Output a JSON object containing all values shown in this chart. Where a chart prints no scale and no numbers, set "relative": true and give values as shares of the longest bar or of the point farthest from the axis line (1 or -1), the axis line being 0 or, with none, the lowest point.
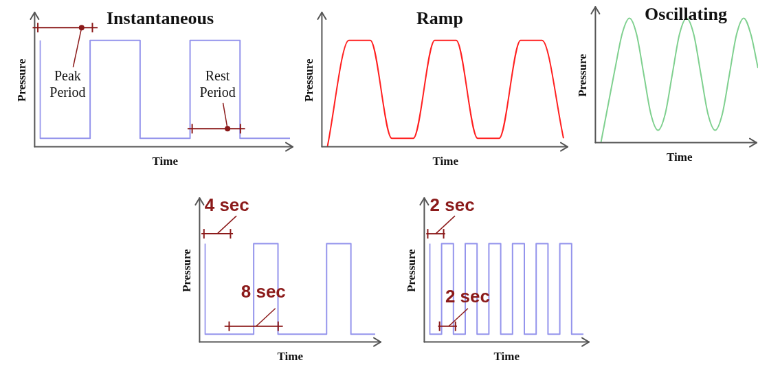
{
  "chart_data": [
    {
      "type": "step",
      "title": "Instantaneous",
      "xlabel": "Time",
      "ylabel": "Pressure",
      "relative": true,
      "marker": "none",
      "categories": [
        null,
        null,
        null,
        null,
        null,
        null
      ],
      "series": [
        {
          "color": "#9494ec",
          "values": [
            1,
            0.08,
            1,
            0.08,
            1,
            0.08
          ]
        }
      ],
      "annotations": [
        "Peak Period",
        "Rest Period"
      ]
    },
    {
      "type": "line",
      "title": "Ramp",
      "xlabel": "Time",
      "ylabel": "Pressure",
      "relative": true,
      "marker": "none",
      "categories": [
        null,
        null,
        null,
        null,
        null,
        null,
        null,
        null,
        null,
        null,
        null,
        null
      ],
      "series": [
        {
          "color": "#ff2020",
          "values": [
            0,
            1,
            1,
            0.08,
            0.08,
            1,
            1,
            0.08,
            0.08,
            1,
            1,
            0.08
          ]
        }
      ]
    },
    {
      "type": "line",
      "title": "Oscillating",
      "xlabel": "Time",
      "ylabel": "Pressure",
      "relative": true,
      "marker": "none",
      "categories": [
        null,
        null,
        null,
        null,
        null,
        null,
        null,
        null,
        null,
        null,
        null,
        null,
        null,
        null,
        null,
        null,
        null,
        null,
        null,
        null,
        null,
        null,
        null
      ],
      "series": [
        {
          "color": "#7fd08f",
          "values": [
            0,
            0.3,
            0.6,
            0.88,
            1,
            0.87,
            0.55,
            0.23,
            0.1,
            0.23,
            0.55,
            0.87,
            1,
            0.87,
            0.55,
            0.23,
            0.1,
            0.23,
            0.55,
            0.87,
            1,
            0.87,
            0.6
          ]
        }
      ]
    },
    {
      "type": "step",
      "xlabel": "Time",
      "ylabel": "Pressure",
      "relative": true,
      "marker": "none",
      "categories": [
        null,
        null,
        null,
        null,
        null,
        null,
        null,
        null
      ],
      "series": [
        {
          "color": "#9494ec",
          "values": [
            1,
            0.08,
            0.08,
            1,
            0.08,
            0.08,
            1,
            0.08
          ]
        }
      ],
      "annotations": [
        "4 sec",
        "8 sec"
      ]
    },
    {
      "type": "step",
      "xlabel": "Time",
      "ylabel": "Pressure",
      "relative": true,
      "marker": "none",
      "categories": [
        null,
        null,
        null,
        null,
        null,
        null,
        null,
        null,
        null,
        null,
        null,
        null,
        null,
        null
      ],
      "series": [
        {
          "color": "#9494ec",
          "values": [
            1,
            0.08,
            1,
            0.08,
            1,
            0.08,
            1,
            0.08,
            1,
            0.08,
            1,
            0.08,
            1,
            0.08
          ]
        }
      ],
      "annotations": [
        "2 sec",
        "2 sec"
      ]
    }
  ]
}
